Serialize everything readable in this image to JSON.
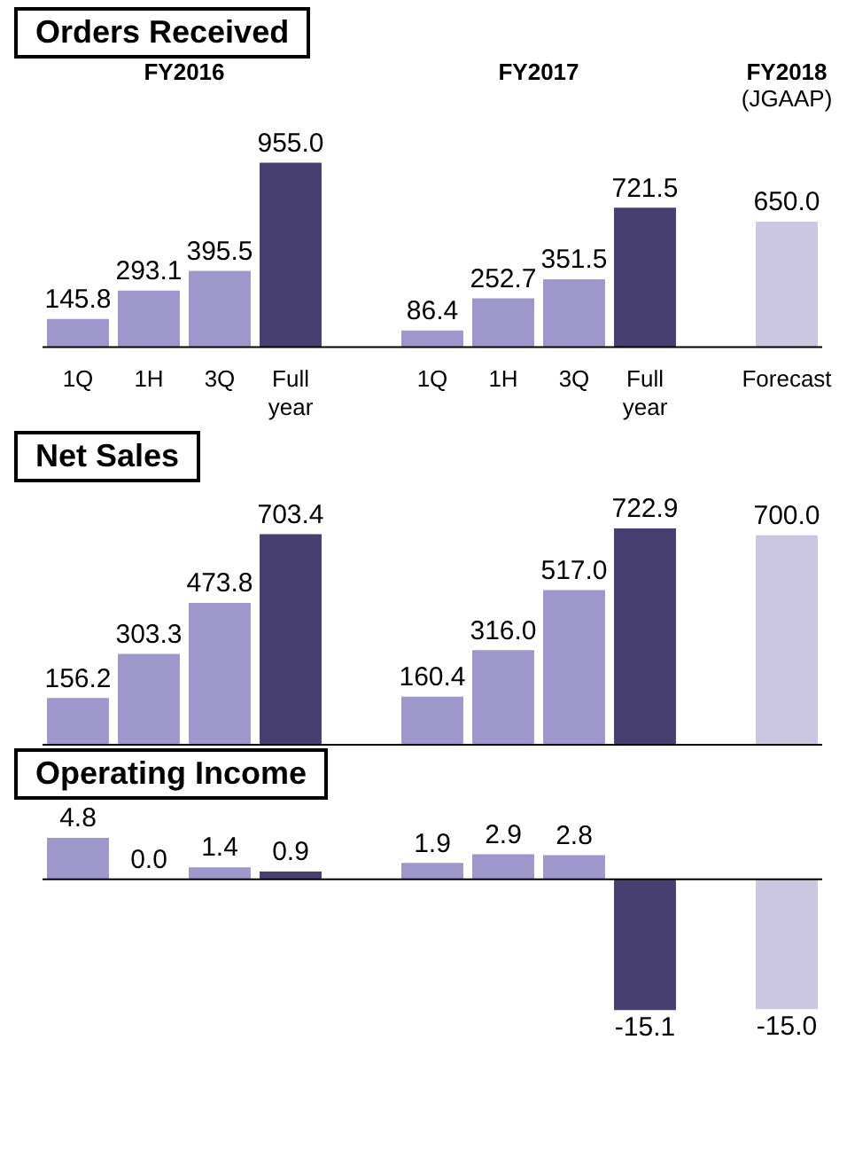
{
  "chart_data": [
    {
      "type": "bar",
      "title": "Orders Received",
      "categories": [
        "1Q",
        "1H",
        "3Q",
        "Full year",
        null,
        "1Q",
        "1H",
        "3Q",
        "Full year",
        null,
        "Forecast"
      ],
      "values": [
        145.8,
        293.1,
        395.5,
        955.0,
        null,
        86.4,
        252.7,
        351.5,
        721.5,
        null,
        650.0
      ],
      "value_labels": [
        "145.8",
        "293.1",
        "395.5",
        "955.0",
        null,
        "86.4",
        "252.7",
        "351.5",
        "721.5",
        null,
        "650.0"
      ],
      "colors": [
        "#9e97cb",
        "#9e97cb",
        "#9e97cb",
        "#463f6f",
        "#ffffff",
        "#9e97cb",
        "#9e97cb",
        "#9e97cb",
        "#463f6f",
        "#ffffff",
        "#cbc6e2"
      ],
      "annotations": [
        "FY2016",
        "FY2017",
        "FY2018\n(JGAAP)"
      ]
    },
    {
      "type": "bar",
      "title": "Net Sales",
      "categories": [
        null,
        null,
        null,
        null,
        null,
        null,
        null,
        null,
        null,
        null,
        null
      ],
      "values": [
        156.2,
        303.3,
        473.8,
        703.4,
        null,
        160.4,
        316.0,
        517.0,
        722.9,
        null,
        700.0
      ],
      "value_labels": [
        "156.2",
        "303.3",
        "473.8",
        "703.4",
        null,
        "160.4",
        "316.0",
        "517.0",
        "722.9",
        null,
        "700.0"
      ],
      "colors": [
        "#9e97cb",
        "#9e97cb",
        "#9e97cb",
        "#463f6f",
        "#ffffff",
        "#9e97cb",
        "#9e97cb",
        "#9e97cb",
        "#463f6f",
        "#ffffff",
        "#cbc6e2"
      ],
      "tick_labels": false
    },
    {
      "type": "bar",
      "title": "Operating Income",
      "categories": [
        null,
        null,
        null,
        null,
        null,
        null,
        null,
        null,
        null,
        null,
        null
      ],
      "values": [
        4.8,
        0.0,
        1.4,
        0.9,
        null,
        1.9,
        2.9,
        2.8,
        -15.1,
        null,
        -15.0
      ],
      "value_labels": [
        "4.8",
        "0.0",
        "1.4",
        "0.9",
        null,
        "1.9",
        "2.9",
        "2.8",
        "-15.1",
        null,
        "-15.0"
      ],
      "colors": [
        "#9e97cb",
        "#9e97cb",
        "#9e97cb",
        "#463f6f",
        "#ffffff",
        "#9e97cb",
        "#9e97cb",
        "#9e97cb",
        "#463f6f",
        "#ffffff",
        "#cbc6e2"
      ],
      "tick_labels": false
    }
  ]
}
